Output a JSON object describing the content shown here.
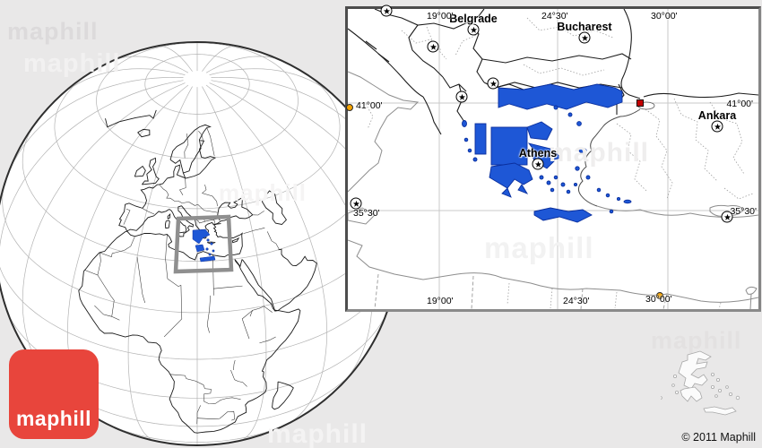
{
  "branding": {
    "logo_text": "maphill",
    "watermark_text": "maphill",
    "copyright": "© 2011 Maphill"
  },
  "colors": {
    "background": "#e9e8e8",
    "highlight_blue": "#1e57d6",
    "highlight_outline": "#0a2f9e",
    "logo_red": "#e8453c",
    "inset_border_gray": "#4d4d4d",
    "capital_marker": "star-in-circle",
    "town_marker_orange": "#f5a300",
    "city_square_red": "#c40000"
  },
  "inset": {
    "cities": [
      {
        "name": "Belgrade"
      },
      {
        "name": "Bucharest"
      },
      {
        "name": "Athens"
      },
      {
        "name": "Ankara"
      }
    ],
    "coords": {
      "top": [
        "19°00'",
        "24°30'",
        "30°00'"
      ],
      "bottom": [
        "19°00'",
        "24°30'",
        "30°00'"
      ],
      "left": [
        "41°00'",
        "35°30'"
      ],
      "right": [
        "41°00'",
        "35°30'"
      ]
    }
  }
}
